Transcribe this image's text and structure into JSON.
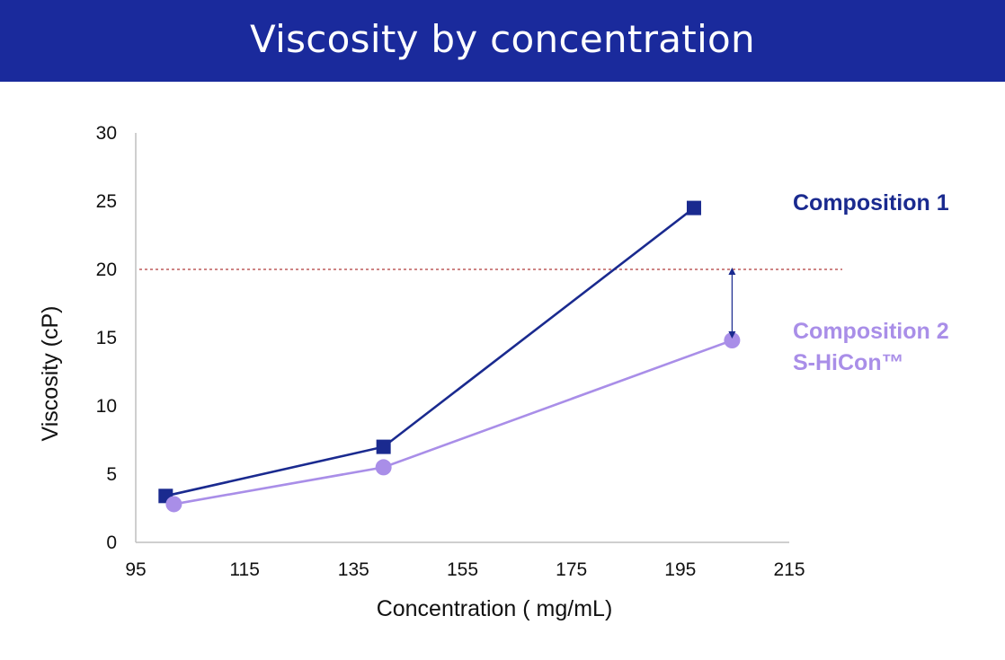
{
  "header": {
    "title": "Viscosity by concentration"
  },
  "colors": {
    "header_bg": "#1a2a9c",
    "composition_1": "#1a2a8f",
    "composition_2": "#a98ee8",
    "threshold": "#b03a3a",
    "axis": "#bfbfbf"
  },
  "chart_data": {
    "type": "line",
    "xlabel": "Concentration ( mg/mL)",
    "ylabel": "Viscosity (cP)",
    "xlim": [
      95,
      215
    ],
    "ylim": [
      0,
      30
    ],
    "x_ticks": [
      95,
      115,
      135,
      155,
      175,
      195,
      215
    ],
    "y_ticks": [
      0,
      5,
      10,
      15,
      20,
      25,
      30
    ],
    "grid": false,
    "series": [
      {
        "name": "Composition 1",
        "marker": "square",
        "x": [
          100.5,
          140.5,
          197.5
        ],
        "y": [
          3.4,
          7.0,
          24.5
        ]
      },
      {
        "name": "Composition 2",
        "name_line2": "S-HiCon™",
        "marker": "circle",
        "x": [
          102,
          140.5,
          204.5
        ],
        "y": [
          2.8,
          5.5,
          14.8
        ]
      }
    ],
    "reference_line": {
      "y": 20,
      "style": "dashed"
    },
    "annotation_arrow": {
      "x": 204.5,
      "y_from": 20,
      "y_to": 14.8,
      "style": "double-headed"
    }
  }
}
